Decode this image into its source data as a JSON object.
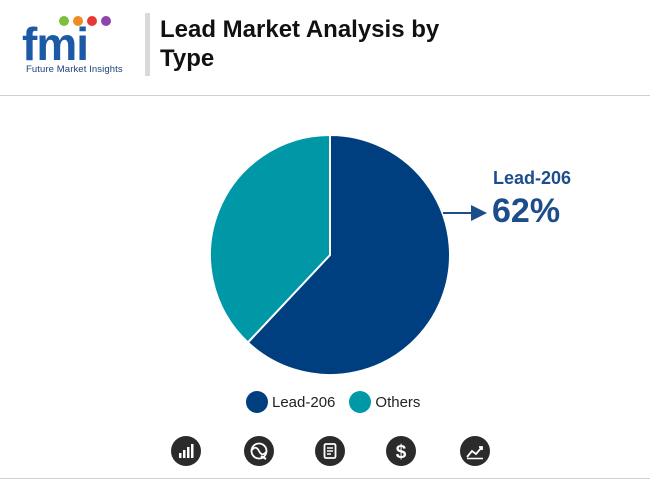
{
  "header": {
    "logo_text": "fmi",
    "logo_caption": "Future Market Insights",
    "title": "Lead Market Analysis by Type"
  },
  "chart_data": {
    "type": "pie",
    "title": "Lead Market Analysis by Type",
    "categories": [
      "Lead-206",
      "Others"
    ],
    "values": [
      62,
      38
    ],
    "colors": [
      "#003f7f",
      "#0097a7"
    ],
    "callout": {
      "label": "Lead-206",
      "value": "62%"
    }
  },
  "legend": {
    "items": [
      {
        "label": "Lead-206",
        "color": "#003f7f"
      },
      {
        "label": "Others",
        "color": "#0097a7"
      }
    ]
  },
  "footer_icons": [
    "bar-chart-icon",
    "globe-icon",
    "document-icon",
    "dollar-icon",
    "trend-chart-icon"
  ],
  "colors": {
    "title": "#111111",
    "callout": "#1e4d8c",
    "icon_bg": "#2b2b2b"
  }
}
